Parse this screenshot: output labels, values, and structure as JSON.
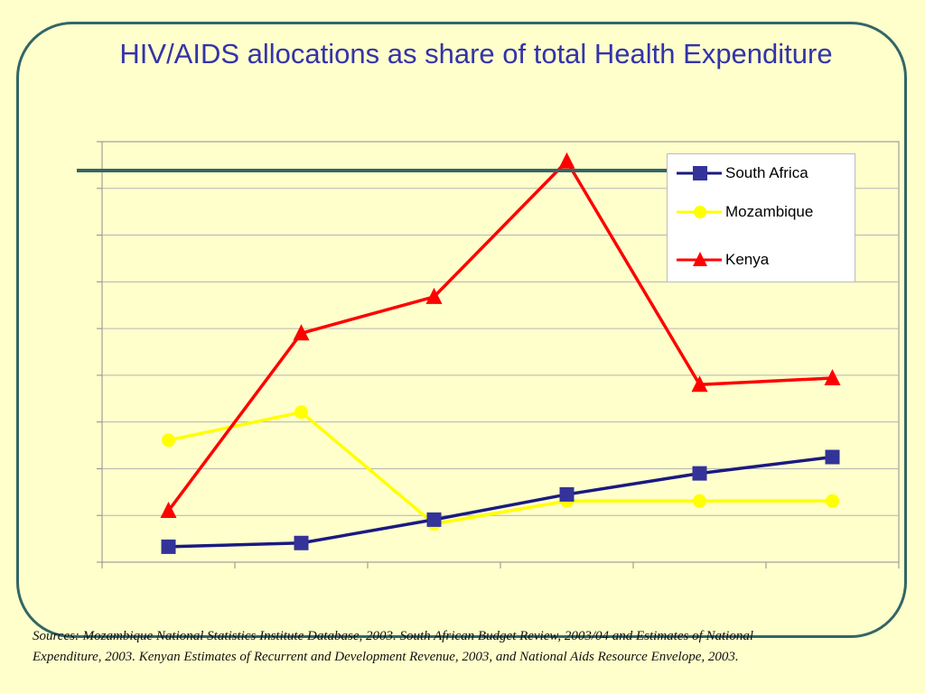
{
  "slide": {
    "title": "HIV/AIDS allocations as share of total Health Expenditure",
    "sources": "Sources: Mozambique National Statistics Institute Database, 2003. South African Budget Review, 2003/04 and Estimates of National Expenditure, 2003. Kenyan Estimates of Recurrent and Development Revenue, 2003, and National Aids Resource Envelope, 2003."
  },
  "colors": {
    "background": "#ffffcc",
    "frame": "#336666",
    "title": "#3333aa"
  },
  "chart_data": {
    "type": "line",
    "title": "",
    "xlabel": "",
    "ylabel": "",
    "categories": [
      "",
      "",
      "",
      "",
      "",
      ""
    ],
    "ylim": [
      0,
      9
    ],
    "grid": true,
    "legend_position": "top-right",
    "series": [
      {
        "name": "South Africa",
        "color": "#1a1a80",
        "marker_color": "#333399",
        "marker": "square",
        "values": [
          0.33,
          0.41,
          0.91,
          1.45,
          1.9,
          2.25
        ]
      },
      {
        "name": "Mozambique",
        "color": "#ffff00",
        "marker_color": "#ffff00",
        "marker": "circle",
        "values": [
          2.61,
          3.21,
          0.82,
          1.31,
          1.31,
          1.31
        ]
      },
      {
        "name": "Kenya",
        "color": "#ff0000",
        "marker_color": "#ff0000",
        "marker": "triangle",
        "values": [
          1.1,
          4.9,
          5.68,
          8.58,
          3.8,
          3.94
        ]
      }
    ]
  }
}
